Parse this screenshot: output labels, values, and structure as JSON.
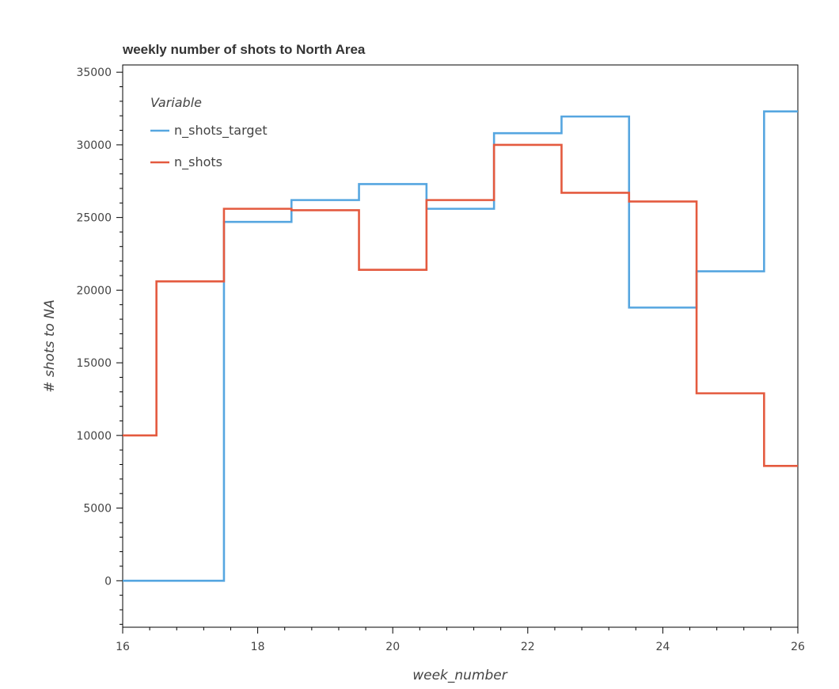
{
  "chart_data": {
    "type": "line",
    "step": "mid",
    "title": "weekly number of shots to North Area",
    "xlabel": "week_number",
    "ylabel": "# shots to NA",
    "xlim": [
      16,
      26
    ],
    "ylim": [
      -3200,
      35500
    ],
    "x_ticks": [
      16,
      18,
      20,
      22,
      24,
      26
    ],
    "y_ticks": [
      0,
      5000,
      10000,
      15000,
      20000,
      25000,
      30000,
      35000
    ],
    "grid": false,
    "legend": {
      "title": "Variable",
      "position": "top-left"
    },
    "x": [
      16,
      17,
      18,
      19,
      20,
      21,
      22,
      23,
      24,
      25,
      26
    ],
    "series": [
      {
        "name": "n_shots_target",
        "color": "#56a6e0",
        "values": [
          0,
          0,
          24700,
          26200,
          27300,
          25600,
          30800,
          31950,
          18800,
          21300,
          32300
        ]
      },
      {
        "name": "n_shots",
        "color": "#e45a3f",
        "values": [
          10000,
          20600,
          25600,
          25500,
          21400,
          26200,
          30000,
          26700,
          26100,
          12900,
          7900
        ]
      }
    ]
  }
}
